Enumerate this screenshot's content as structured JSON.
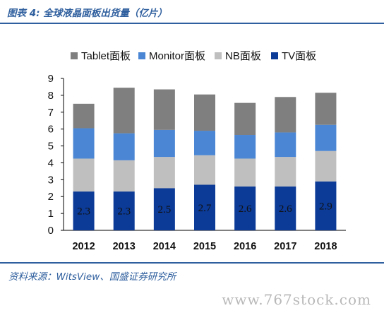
{
  "header": {
    "title": "图表 4: 全球液晶面板出货量（亿片）"
  },
  "source": "资料来源：WitsView、国盛证券研究所",
  "watermark": "www.767stock.com",
  "chart_data": {
    "type": "bar",
    "stacked": true,
    "categories": [
      "2012",
      "2013",
      "2014",
      "2015",
      "2016",
      "2017",
      "2018"
    ],
    "series": [
      {
        "name": "TV面板",
        "color": "#0b3a97",
        "values": [
          2.3,
          2.3,
          2.5,
          2.7,
          2.6,
          2.6,
          2.9
        ],
        "labels": [
          "2.3",
          "2.3",
          "2.5",
          "2.7",
          "2.6",
          "2.6",
          "2.9"
        ]
      },
      {
        "name": "NB面板",
        "color": "#bfbfbf",
        "values": [
          1.95,
          1.85,
          1.85,
          1.75,
          1.65,
          1.75,
          1.8
        ]
      },
      {
        "name": "Monitor面板",
        "color": "#4a86d4",
        "values": [
          1.8,
          1.6,
          1.6,
          1.45,
          1.4,
          1.45,
          1.55
        ]
      },
      {
        "name": "Tablet面板",
        "color": "#7f7f7f",
        "values": [
          1.45,
          2.7,
          2.4,
          2.15,
          1.9,
          2.1,
          1.9
        ]
      }
    ],
    "legend_order": [
      "Tablet面板",
      "Monitor面板",
      "NB面板",
      "TV面板"
    ],
    "ylim": [
      0,
      9
    ],
    "yticks": [
      "0",
      "1",
      "2",
      "3",
      "4",
      "5",
      "6",
      "7",
      "8",
      "9"
    ],
    "grid": false,
    "legend_position": "top"
  }
}
